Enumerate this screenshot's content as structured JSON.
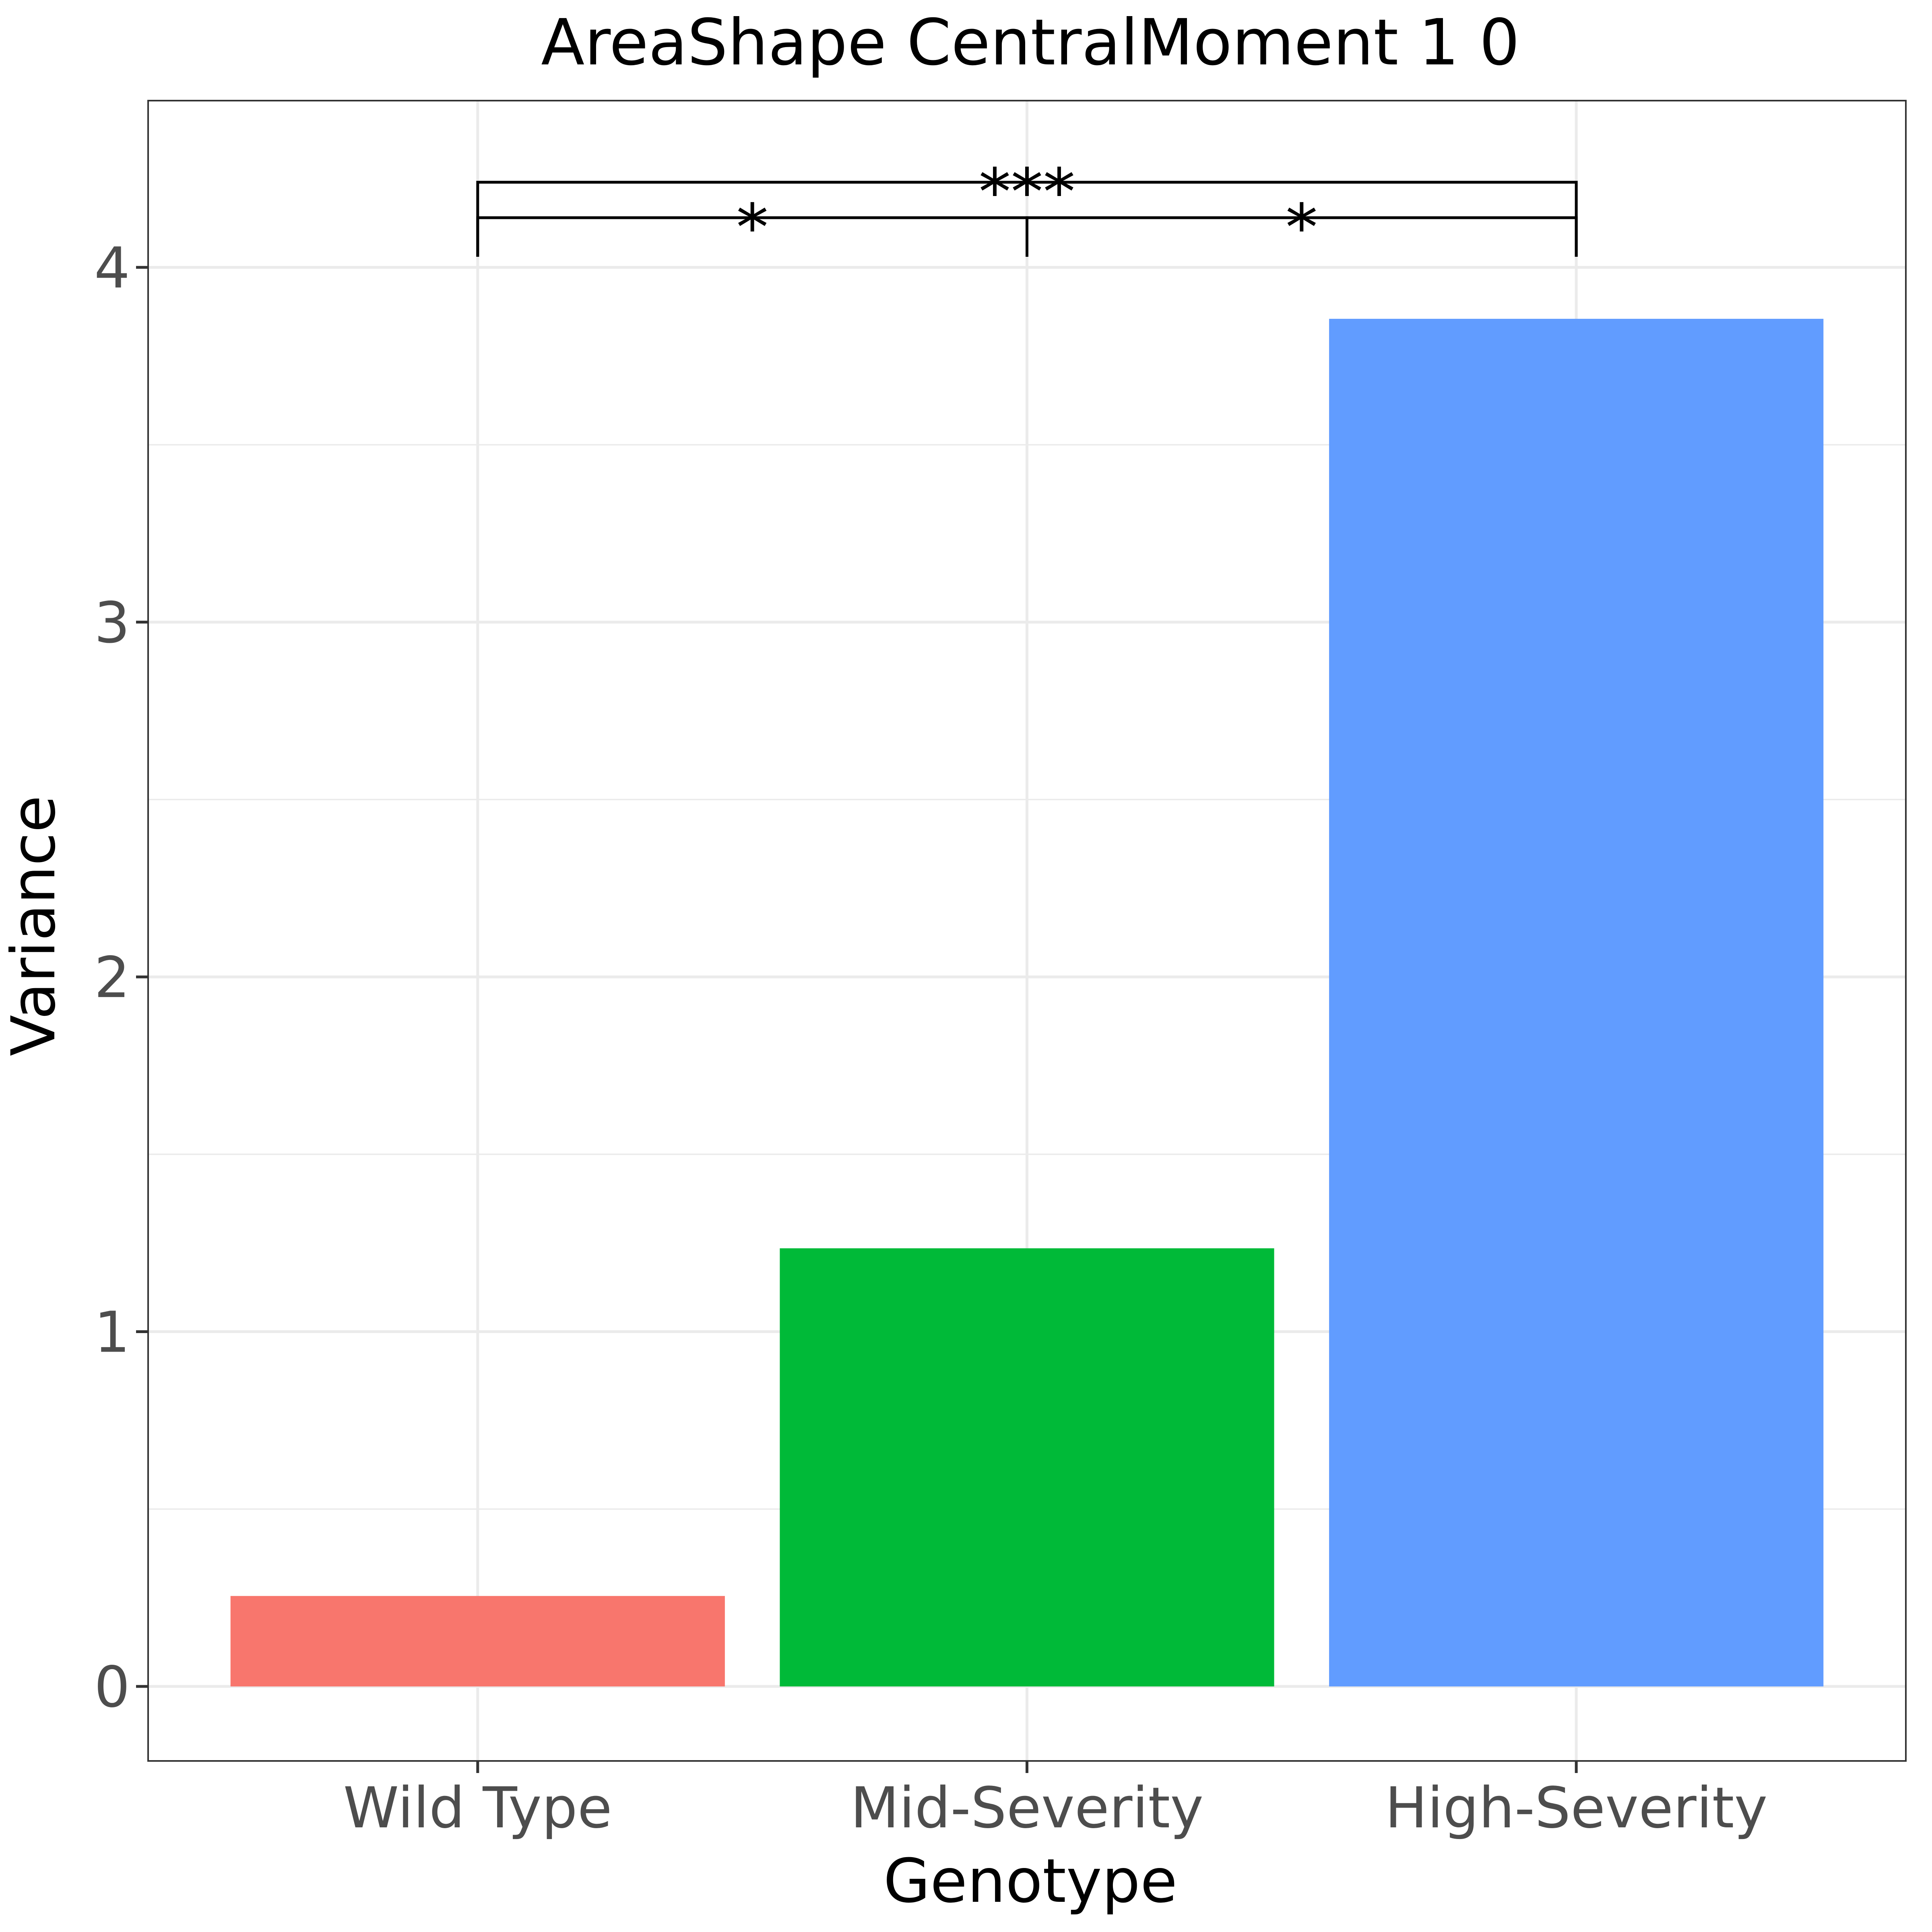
{
  "chart_data": {
    "type": "bar",
    "title": "AreaShape CentralMoment 1 0",
    "xlabel": "Genotype",
    "ylabel": "Variance",
    "categories": [
      "Wild Type",
      "Mid-Severity",
      "High-Severity"
    ],
    "values": [
      0.255,
      1.235,
      3.855
    ],
    "colors": [
      "#F8766D",
      "#00BA38",
      "#619CFF"
    ],
    "ylim": [
      -0.21,
      4.47
    ],
    "yticks": [
      0,
      1,
      2,
      3,
      4
    ],
    "grid": true,
    "legend": "none",
    "significance": [
      {
        "from": 0,
        "to": 1,
        "label": "*",
        "y": 4.14
      },
      {
        "from": 1,
        "to": 2,
        "label": "*",
        "y": 4.14
      },
      {
        "from": 0,
        "to": 2,
        "label": "***",
        "y": 4.24
      }
    ]
  }
}
